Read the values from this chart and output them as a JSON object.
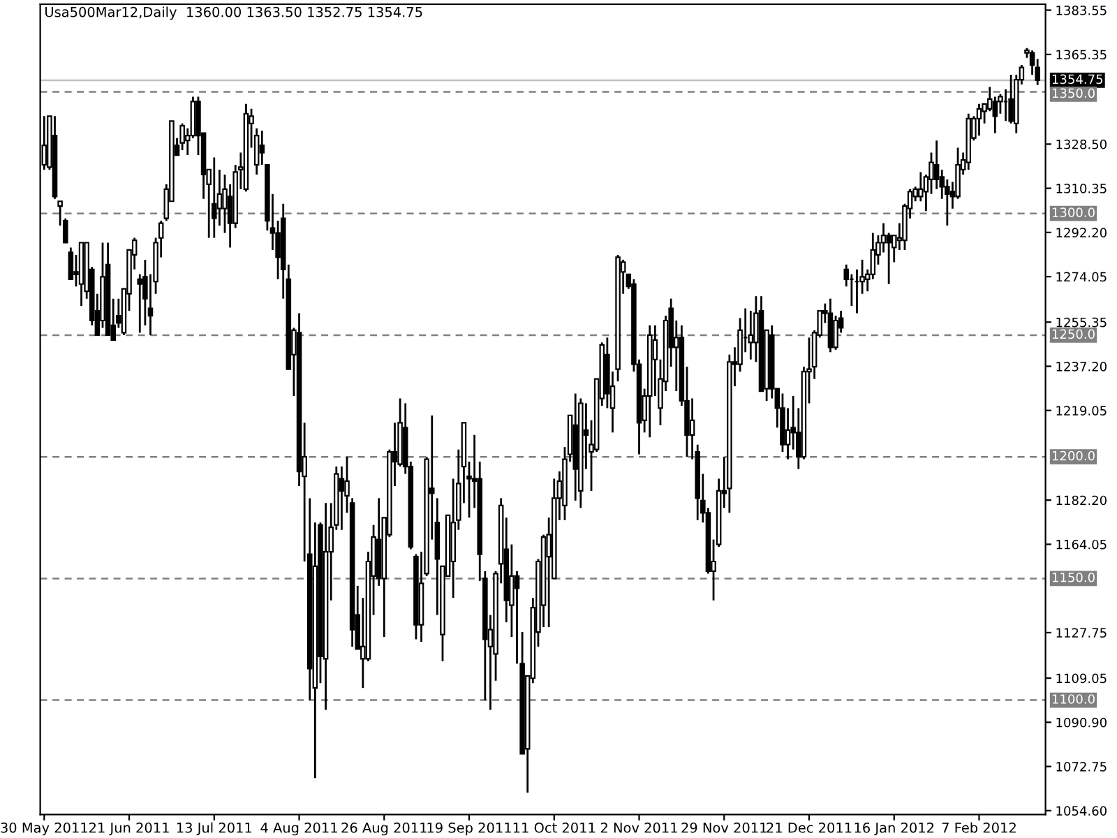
{
  "chart_data": {
    "type": "candlestick",
    "title": "Usa500Mar12,Daily  1360.00 1363.50 1352.75 1354.75",
    "categories": [
      "30 May 2011",
      null,
      null,
      null,
      null,
      null,
      null,
      null,
      null,
      null,
      null,
      null,
      null,
      null,
      null,
      null,
      "21 Jun 2011",
      null,
      null,
      null,
      null,
      null,
      null,
      null,
      null,
      null,
      null,
      null,
      null,
      null,
      null,
      null,
      "13 Jul 2011",
      null,
      null,
      null,
      null,
      null,
      null,
      null,
      null,
      null,
      null,
      null,
      null,
      null,
      null,
      null,
      "4 Aug 2011",
      null,
      null,
      null,
      null,
      null,
      null,
      null,
      null,
      null,
      null,
      null,
      null,
      null,
      null,
      null,
      "26 Aug 2011",
      null,
      null,
      null,
      null,
      null,
      null,
      null,
      null,
      null,
      null,
      null,
      null,
      null,
      null,
      null,
      "19 Sep 2011",
      null,
      null,
      null,
      null,
      null,
      null,
      null,
      null,
      null,
      null,
      null,
      null,
      null,
      null,
      null,
      "11 Oct 2011",
      null,
      null,
      null,
      null,
      null,
      null,
      null,
      null,
      null,
      null,
      null,
      null,
      null,
      null,
      null,
      "2 Nov 2011",
      null,
      null,
      null,
      null,
      null,
      null,
      null,
      null,
      null,
      null,
      null,
      null,
      null,
      null,
      null,
      "29 Nov 2011",
      null,
      null,
      null,
      null,
      null,
      null,
      null,
      null,
      null,
      null,
      null,
      null,
      null,
      null,
      null,
      "21 Dec 2011",
      null,
      null,
      null,
      null,
      null,
      null,
      null,
      null,
      null,
      null,
      null,
      null,
      null,
      null,
      null,
      "16 Jan 2012",
      null,
      null,
      null,
      null,
      null,
      null,
      null,
      null,
      null,
      null,
      null,
      null,
      null,
      null,
      null,
      "7 Feb 2012",
      null,
      null,
      null,
      null,
      null,
      null,
      null,
      null,
      null,
      null,
      null
    ],
    "series": [
      {
        "color": "#000000",
        "ohlc": [
          [
            1320,
            1340,
            1318,
            1328
          ],
          [
            1319,
            1340,
            1318,
            1340
          ],
          [
            1332,
            1340,
            1306,
            1307
          ],
          [
            1303,
            1305,
            1295,
            1305
          ],
          [
            1297,
            1298,
            1288,
            1288
          ],
          [
            1284,
            1286,
            1273,
            1273
          ],
          [
            1276,
            1283,
            1270,
            1275
          ],
          [
            1271,
            1288,
            1262,
            1288
          ],
          [
            1268,
            1288,
            1265,
            1288
          ],
          [
            1277,
            1278,
            1254,
            1256
          ],
          [
            1260,
            1267,
            1250,
            1250
          ],
          [
            1256,
            1288,
            1253,
            1274
          ],
          [
            1279,
            1288,
            1250,
            1250
          ],
          [
            1254,
            1265,
            1248,
            1248
          ],
          [
            1258,
            1265,
            1253,
            1255
          ],
          [
            1251,
            1269,
            1250,
            1269
          ],
          [
            1267,
            1285,
            1260,
            1285
          ],
          [
            1283,
            1290,
            1277,
            1289
          ],
          [
            1273,
            1275,
            1251,
            1271
          ],
          [
            1274,
            1281,
            1254,
            1265
          ],
          [
            1261,
            1275,
            1250,
            1258
          ],
          [
            1272,
            1290,
            1267,
            1288
          ],
          [
            1290,
            1297,
            1282,
            1296
          ],
          [
            1298,
            1312,
            1297,
            1310
          ],
          [
            1305,
            1338,
            1305,
            1338
          ],
          [
            1328,
            1331,
            1324,
            1324
          ],
          [
            1329,
            1337,
            1326,
            1336
          ],
          [
            1330,
            1335,
            1324,
            1332
          ],
          [
            1332,
            1348,
            1331,
            1346
          ],
          [
            1346,
            1348,
            1324,
            1332
          ],
          [
            1333,
            1333,
            1306,
            1316
          ],
          [
            1312,
            1318,
            1290,
            1318
          ],
          [
            1304,
            1323,
            1290,
            1298
          ],
          [
            1302,
            1318,
            1295,
            1308
          ],
          [
            1302,
            1316,
            1292,
            1310
          ],
          [
            1307,
            1312,
            1286,
            1296
          ],
          [
            1296,
            1320,
            1294,
            1317
          ],
          [
            1318,
            1325,
            1310,
            1319
          ],
          [
            1310,
            1345,
            1309,
            1341
          ],
          [
            1337,
            1343,
            1327,
            1340
          ],
          [
            1320,
            1335,
            1316,
            1332
          ],
          [
            1328,
            1334,
            1320,
            1325
          ],
          [
            1320,
            1320,
            1293,
            1297
          ],
          [
            1294,
            1308,
            1285,
            1292
          ],
          [
            1292,
            1297,
            1273,
            1282
          ],
          [
            1298,
            1304,
            1265,
            1277
          ],
          [
            1273,
            1279,
            1236,
            1236
          ],
          [
            1242,
            1253,
            1225,
            1252
          ],
          [
            1251,
            1259,
            1188,
            1194
          ],
          [
            1192,
            1214,
            1157,
            1200
          ],
          [
            1160,
            1183,
            1100,
            1113
          ],
          [
            1105,
            1173,
            1068,
            1155
          ],
          [
            1172,
            1173,
            1107,
            1118
          ],
          [
            1117,
            1181,
            1096,
            1161
          ],
          [
            1161,
            1181,
            1141,
            1171
          ],
          [
            1172,
            1196,
            1170,
            1193
          ],
          [
            1191,
            1196,
            1170,
            1186
          ],
          [
            1184,
            1200,
            1177,
            1190
          ],
          [
            1181,
            1183,
            1122,
            1129
          ],
          [
            1135,
            1147,
            1121,
            1121
          ],
          [
            1117,
            1142,
            1105,
            1122
          ],
          [
            1117,
            1161,
            1116,
            1157
          ],
          [
            1151,
            1172,
            1135,
            1167
          ],
          [
            1166,
            1183,
            1147,
            1150
          ],
          [
            1150,
            1175,
            1126,
            1175
          ],
          [
            1168,
            1203,
            1167,
            1202
          ],
          [
            1202,
            1214,
            1188,
            1198
          ],
          [
            1197,
            1224,
            1196,
            1214
          ],
          [
            1212,
            1222,
            1193,
            1196
          ],
          [
            1196,
            1198,
            1162,
            1163
          ],
          [
            1159,
            1160,
            1125,
            1131
          ],
          [
            1131,
            1161,
            1124,
            1148
          ],
          [
            1152,
            1200,
            1151,
            1199
          ],
          [
            1187,
            1217,
            1166,
            1185
          ],
          [
            1173,
            1183,
            1135,
            1158
          ],
          [
            1127,
            1155,
            1116,
            1155
          ],
          [
            1151,
            1176,
            1151,
            1176
          ],
          [
            1157,
            1191,
            1142,
            1173
          ],
          [
            1174,
            1203,
            1170,
            1189
          ],
          [
            1196,
            1214,
            1181,
            1214
          ],
          [
            1192,
            1198,
            1175,
            1191
          ],
          [
            1191,
            1209,
            1179,
            1190
          ],
          [
            1191,
            1198,
            1149,
            1160
          ],
          [
            1150,
            1153,
            1100,
            1125
          ],
          [
            1122,
            1135,
            1096,
            1129
          ],
          [
            1119,
            1153,
            1108,
            1152
          ],
          [
            1156,
            1183,
            1148,
            1180
          ],
          [
            1162,
            1175,
            1132,
            1141
          ],
          [
            1139,
            1164,
            1126,
            1151
          ],
          [
            1151,
            1153,
            1115,
            1146
          ],
          [
            1115,
            1128,
            1078,
            1078
          ],
          [
            1080,
            1110,
            1062,
            1110
          ],
          [
            1109,
            1142,
            1107,
            1138
          ],
          [
            1128,
            1158,
            1122,
            1157
          ],
          [
            1139,
            1168,
            1130,
            1167
          ],
          [
            1159,
            1175,
            1130,
            1168
          ],
          [
            1150,
            1191,
            1150,
            1183
          ],
          [
            1183,
            1194,
            1174,
            1190
          ],
          [
            1180,
            1204,
            1174,
            1199
          ],
          [
            1201,
            1217,
            1198,
            1217
          ],
          [
            1213,
            1226,
            1182,
            1195
          ],
          [
            1186,
            1224,
            1179,
            1222
          ],
          [
            1211,
            1222,
            1195,
            1209
          ],
          [
            1202,
            1215,
            1186,
            1205
          ],
          [
            1203,
            1232,
            1202,
            1232
          ],
          [
            1224,
            1247,
            1221,
            1246
          ],
          [
            1242,
            1249,
            1220,
            1226
          ],
          [
            1220,
            1235,
            1210,
            1229
          ],
          [
            1236,
            1283,
            1231,
            1282
          ],
          [
            1276,
            1281,
            1267,
            1280
          ],
          [
            1275,
            1275,
            1269,
            1270
          ],
          [
            1271,
            1273,
            1235,
            1238
          ],
          [
            1238,
            1240,
            1201,
            1214
          ],
          [
            1215,
            1228,
            1210,
            1225
          ],
          [
            1225,
            1254,
            1208,
            1250
          ],
          [
            1240,
            1254,
            1225,
            1248
          ],
          [
            1220,
            1240,
            1213,
            1232
          ],
          [
            1231,
            1258,
            1227,
            1256
          ],
          [
            1261,
            1265,
            1237,
            1245
          ],
          [
            1245,
            1256,
            1227,
            1249
          ],
          [
            1249,
            1254,
            1221,
            1223
          ],
          [
            1223,
            1237,
            1200,
            1209
          ],
          [
            1209,
            1224,
            1199,
            1215
          ],
          [
            1202,
            1205,
            1174,
            1183
          ],
          [
            1182,
            1193,
            1173,
            1177
          ],
          [
            1177,
            1179,
            1152,
            1153
          ],
          [
            1153,
            1166,
            1141,
            1157
          ],
          [
            1164,
            1191,
            1163,
            1186
          ],
          [
            1186,
            1200,
            1179,
            1185
          ],
          [
            1187,
            1242,
            1177,
            1239
          ],
          [
            1239,
            1245,
            1229,
            1238
          ],
          [
            1238,
            1257,
            1235,
            1252
          ],
          [
            1249,
            1261,
            1243,
            1249
          ],
          [
            1247,
            1260,
            1240,
            1250
          ],
          [
            1247,
            1266,
            1239,
            1259
          ],
          [
            1260,
            1266,
            1227,
            1227
          ],
          [
            1228,
            1252,
            1223,
            1252
          ],
          [
            1250,
            1254,
            1224,
            1228
          ],
          [
            1228,
            1228,
            1212,
            1220
          ],
          [
            1220,
            1226,
            1202,
            1205
          ],
          [
            1205,
            1220,
            1199,
            1211
          ],
          [
            1212,
            1225,
            1203,
            1210
          ],
          [
            1210,
            1220,
            1195,
            1200
          ],
          [
            1200,
            1237,
            1199,
            1235
          ],
          [
            1235,
            1249,
            1222,
            1236
          ],
          [
            1237,
            1252,
            1232,
            1251
          ],
          [
            1250,
            1260,
            1249,
            1260
          ],
          [
            1260,
            1263,
            1255,
            1259
          ],
          [
            1259,
            1265,
            1243,
            1245
          ],
          [
            1245,
            1258,
            1244,
            1256
          ],
          [
            1257,
            1260,
            1251,
            1253
          ],
          [
            1277,
            1279,
            1270,
            1273
          ],
          [
            1273,
            1275,
            1262,
            1273
          ],
          [
            1272,
            1277,
            1259,
            1272
          ],
          [
            1272,
            1281,
            1267,
            1274
          ],
          [
            1273,
            1277,
            1268,
            1275
          ],
          [
            1275,
            1292,
            1273,
            1285
          ],
          [
            1283,
            1291,
            1279,
            1288
          ],
          [
            1288,
            1296,
            1284,
            1291
          ],
          [
            1291,
            1292,
            1271,
            1288
          ],
          [
            1286,
            1291,
            1280,
            1291
          ],
          [
            1289,
            1296,
            1285,
            1290
          ],
          [
            1289,
            1304,
            1285,
            1303
          ],
          [
            1302,
            1310,
            1298,
            1309
          ],
          [
            1307,
            1311,
            1305,
            1310
          ],
          [
            1307,
            1317,
            1305,
            1310
          ],
          [
            1309,
            1316,
            1301,
            1315
          ],
          [
            1314,
            1325,
            1308,
            1321
          ],
          [
            1320,
            1330,
            1310,
            1314
          ],
          [
            1315,
            1318,
            1306,
            1311
          ],
          [
            1311,
            1314,
            1295,
            1308
          ],
          [
            1309,
            1313,
            1302,
            1307
          ],
          [
            1307,
            1327,
            1306,
            1320
          ],
          [
            1318,
            1325,
            1316,
            1322
          ],
          [
            1321,
            1341,
            1318,
            1339
          ],
          [
            1331,
            1340,
            1330,
            1339
          ],
          [
            1339,
            1345,
            1332,
            1343
          ],
          [
            1342,
            1345,
            1337,
            1345
          ],
          [
            1343,
            1352,
            1342,
            1347
          ],
          [
            1346,
            1348,
            1333,
            1340
          ],
          [
            1346,
            1349,
            1341,
            1348
          ],
          [
            1346,
            1351,
            1338,
            1346
          ],
          [
            1347,
            1357,
            1337,
            1338
          ],
          [
            1337,
            1357,
            1333,
            1355
          ],
          [
            1355,
            1361,
            1353,
            1360
          ],
          [
            1366,
            1368,
            1364,
            1367
          ],
          [
            1366,
            1367,
            1357,
            1361
          ],
          [
            1360.0,
            1363.5,
            1352.75,
            1354.75
          ]
        ]
      }
    ],
    "ylim": [
      1053,
      1386
    ],
    "yticks": [
      1383.55,
      1365.35,
      {
        "value": 1328.5,
        "label": "1328.50"
      },
      1310.35,
      {
        "value": 1292.2,
        "label": "1292.20"
      },
      1274.05,
      1255.35,
      {
        "value": 1237.2,
        "label": "1237.20"
      },
      1219.05,
      {
        "value": 1182.2,
        "label": "1182.20"
      },
      1164.05,
      1127.75,
      1109.05,
      {
        "value": 1090.9,
        "label": "1090.90"
      },
      1072.75,
      {
        "value": 1054.6,
        "label": "1054.60"
      }
    ],
    "ref_lines": [
      {
        "axis": "y",
        "value": 1350.0,
        "label": "1350.0",
        "color": "#808080",
        "line_style": "dashed"
      },
      {
        "axis": "y",
        "value": 1300.0,
        "label": "1300.0",
        "color": "#808080",
        "line_style": "dashed"
      },
      {
        "axis": "y",
        "value": 1250.0,
        "label": "1250.0",
        "color": "#808080",
        "line_style": "dashed"
      },
      {
        "axis": "y",
        "value": 1200.0,
        "label": "1200.0",
        "color": "#808080",
        "line_style": "dashed"
      },
      {
        "axis": "y",
        "value": 1150.0,
        "label": "1150.0",
        "color": "#808080",
        "line_style": "dashed"
      },
      {
        "axis": "y",
        "value": 1100.0,
        "label": "1100.0",
        "color": "#808080",
        "line_style": "dashed"
      },
      {
        "axis": "y",
        "value": 1354.75,
        "label": "1354.75",
        "color": "#c0c0c0",
        "line_style": "solid"
      }
    ]
  }
}
